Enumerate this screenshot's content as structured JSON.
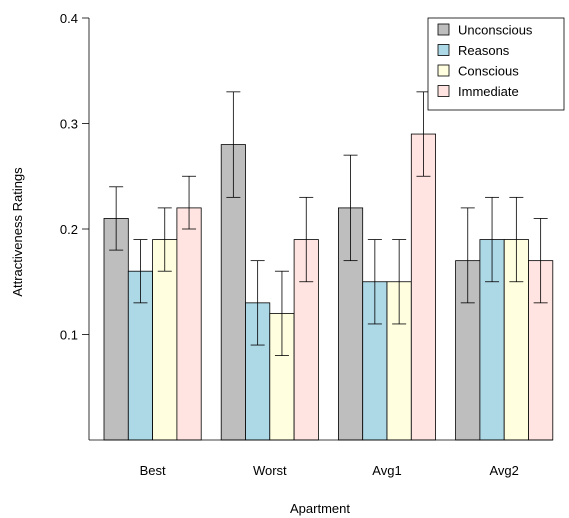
{
  "chart_data": {
    "type": "bar",
    "xlabel": "Apartment",
    "ylabel": "Attractiveness Ratings",
    "categories": [
      "Best",
      "Worst",
      "Avg1",
      "Avg2"
    ],
    "ylim": [
      0.0,
      0.4
    ],
    "yticks": [
      "0.1",
      "0.2",
      "0.3",
      "0.4"
    ],
    "legend_position": "top-right",
    "series": [
      {
        "name": "Unconscious",
        "color": "#bebebe",
        "values": [
          0.21,
          0.28,
          0.22,
          0.17
        ],
        "lower": [
          0.18,
          0.23,
          0.17,
          0.13
        ],
        "upper": [
          0.24,
          0.33,
          0.27,
          0.22
        ]
      },
      {
        "name": "Reasons",
        "color": "#add8e6",
        "values": [
          0.16,
          0.13,
          0.15,
          0.19
        ],
        "lower": [
          0.13,
          0.09,
          0.11,
          0.15
        ],
        "upper": [
          0.19,
          0.17,
          0.19,
          0.23
        ]
      },
      {
        "name": "Conscious",
        "color": "#ffffe0",
        "values": [
          0.19,
          0.12,
          0.15,
          0.19
        ],
        "lower": [
          0.16,
          0.08,
          0.11,
          0.15
        ],
        "upper": [
          0.22,
          0.16,
          0.19,
          0.23
        ]
      },
      {
        "name": "Immediate",
        "color": "#ffe4e1",
        "values": [
          0.22,
          0.19,
          0.29,
          0.17
        ],
        "lower": [
          0.2,
          0.15,
          0.25,
          0.13
        ],
        "upper": [
          0.25,
          0.23,
          0.33,
          0.21
        ]
      }
    ]
  }
}
